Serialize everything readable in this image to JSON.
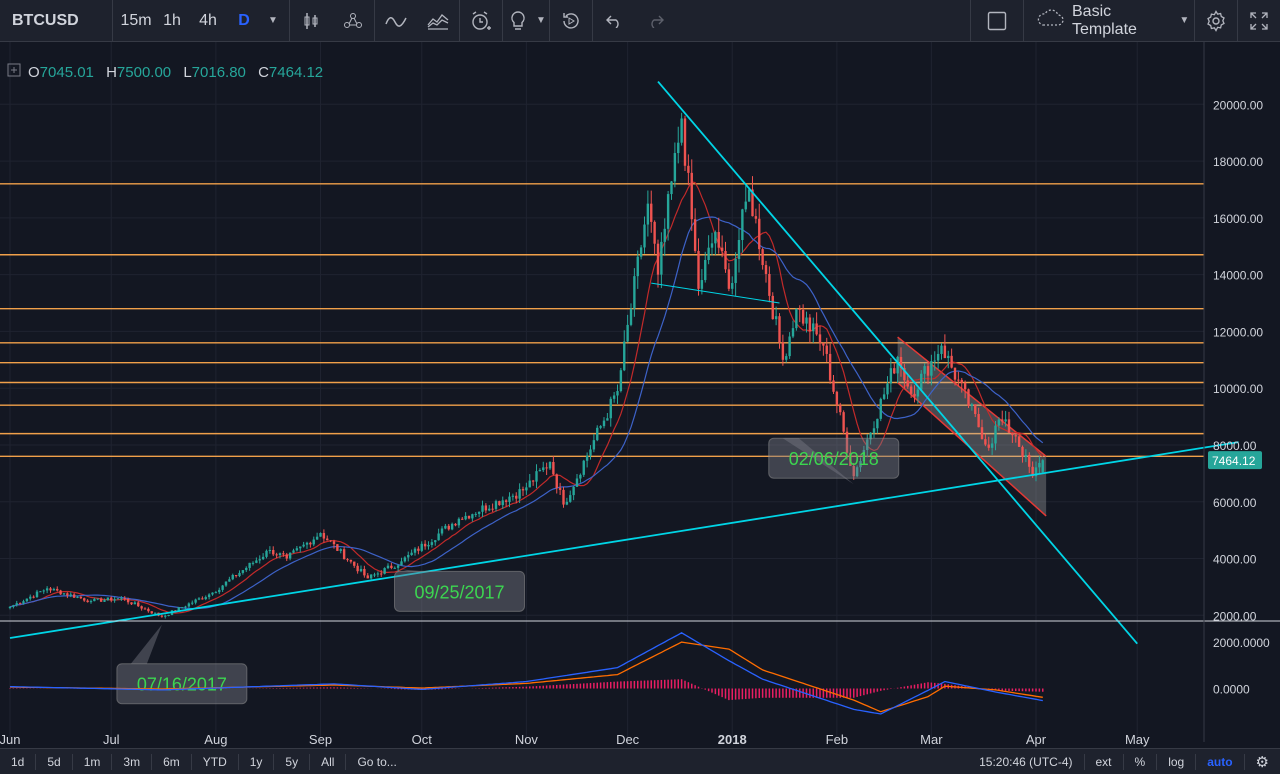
{
  "toolbar": {
    "symbol": "BTCUSD",
    "intervals": [
      "15m",
      "1h",
      "4h",
      "D"
    ],
    "active_interval": "D",
    "template_label": "Basic Template"
  },
  "legend": {
    "open_label": "O",
    "open": "7045.01",
    "high_label": "H",
    "high": "7500.00",
    "low_label": "L",
    "low": "7016.80",
    "close_label": "C",
    "close": "7464.12"
  },
  "bottombar": {
    "ranges": [
      "1d",
      "5d",
      "1m",
      "3m",
      "6m",
      "YTD",
      "1y",
      "5y",
      "All"
    ],
    "goto_label": "Go to...",
    "time": "15:20:46 (UTC-4)",
    "ext_label": "ext",
    "percent_label": "%",
    "log_label": "log",
    "auto_label": "auto"
  },
  "colors": {
    "background": "#131722",
    "up": "#26a69a",
    "down": "#ef5350",
    "trendline": "#00d5e6",
    "level": "#f0a04a",
    "ma_red": "#c22a2a",
    "ma_blue": "#3d62c8",
    "macd_line": "#2962ff",
    "signal_line": "#ff6d00",
    "histogram": "#e91e63",
    "callout_text": "#3cd650"
  },
  "chart_data": {
    "type": "candlestick",
    "symbol": "BTCUSD",
    "interval": "D",
    "x_tick_labels": [
      "Jun",
      "Jul",
      "Aug",
      "Sep",
      "Oct",
      "Nov",
      "Dec",
      "2018",
      "Feb",
      "Mar",
      "Apr",
      "May"
    ],
    "x_ticks": [
      "2017-06-01",
      "2017-07-01",
      "2017-08-01",
      "2017-09-01",
      "2017-10-01",
      "2017-11-01",
      "2017-12-01",
      "2018-01-01",
      "2018-02-01",
      "2018-03-01",
      "2018-04-01",
      "2018-05-01"
    ],
    "price_axis": {
      "tick_labels": [
        "2000.00",
        "4000.00",
        "6000.00",
        "8000.00",
        "10000.00",
        "12000.00",
        "14000.00",
        "16000.00",
        "18000.00",
        "20000.00"
      ],
      "ticks": [
        2000,
        4000,
        6000,
        8000,
        10000,
        12000,
        14000,
        16000,
        18000,
        20000
      ],
      "range": [
        1000,
        21000
      ]
    },
    "last_price_label": "7464.12",
    "last_price": 7464.12,
    "key_points": [
      {
        "date": "2017-06-01",
        "price": 2300
      },
      {
        "date": "2017-06-12",
        "price": 2950
      },
      {
        "date": "2017-06-25",
        "price": 2500
      },
      {
        "date": "2017-07-04",
        "price": 2600
      },
      {
        "date": "2017-07-16",
        "price": 1950
      },
      {
        "date": "2017-07-31",
        "price": 2800
      },
      {
        "date": "2017-08-17",
        "price": 4300
      },
      {
        "date": "2017-08-22",
        "price": 4000
      },
      {
        "date": "2017-09-01",
        "price": 4900
      },
      {
        "date": "2017-09-15",
        "price": 3300
      },
      {
        "date": "2017-09-25",
        "price": 3900
      },
      {
        "date": "2017-10-12",
        "price": 5400
      },
      {
        "date": "2017-10-31",
        "price": 6400
      },
      {
        "date": "2017-11-08",
        "price": 7400
      },
      {
        "date": "2017-11-12",
        "price": 5900
      },
      {
        "date": "2017-11-28",
        "price": 9900
      },
      {
        "date": "2017-12-07",
        "price": 16500
      },
      {
        "date": "2017-12-10",
        "price": 14000
      },
      {
        "date": "2017-12-17",
        "price": 19500
      },
      {
        "date": "2017-12-22",
        "price": 13500
      },
      {
        "date": "2017-12-27",
        "price": 15500
      },
      {
        "date": "2017-12-31",
        "price": 13500
      },
      {
        "date": "2018-01-06",
        "price": 17000
      },
      {
        "date": "2018-01-16",
        "price": 11000
      },
      {
        "date": "2018-01-20",
        "price": 12800
      },
      {
        "date": "2018-01-28",
        "price": 11500
      },
      {
        "date": "2018-02-06",
        "price": 6900
      },
      {
        "date": "2018-02-19",
        "price": 11100
      },
      {
        "date": "2018-02-23",
        "price": 9800
      },
      {
        "date": "2018-03-04",
        "price": 11500
      },
      {
        "date": "2018-03-18",
        "price": 7900
      },
      {
        "date": "2018-03-21",
        "price": 8900
      },
      {
        "date": "2018-03-26",
        "price": 8300
      },
      {
        "date": "2018-03-31",
        "price": 6900
      },
      {
        "date": "2018-04-03",
        "price": 7464
      }
    ],
    "horizontal_levels": [
      17200,
      14700,
      12800,
      11600,
      10900,
      10200,
      9400,
      8400,
      7600
    ],
    "trendlines": [
      {
        "from": {
          "date": "2017-06-01",
          "price": 1200
        },
        "to": {
          "date": "2018-05-31",
          "price": 8100
        }
      },
      {
        "from": {
          "date": "2017-12-10",
          "price": 20800
        },
        "to": {
          "date": "2018-05-01",
          "price": 1000
        }
      },
      {
        "from": {
          "date": "2017-12-08",
          "price": 13700
        },
        "to": {
          "date": "2018-01-15",
          "price": 13000
        }
      }
    ],
    "channel": {
      "upper": [
        {
          "date": "2018-02-19",
          "price": 11800
        },
        {
          "date": "2018-04-04",
          "price": 7600
        }
      ],
      "lower": [
        {
          "date": "2018-02-19",
          "price": 10200
        },
        {
          "date": "2018-04-04",
          "price": 5500
        }
      ]
    },
    "callouts": [
      {
        "label": "07/16/2017",
        "date": "2017-07-16"
      },
      {
        "label": "09/25/2017",
        "date": "2017-09-25"
      },
      {
        "label": "02/06/2018",
        "date": "2018-02-06"
      }
    ],
    "macd_axis": {
      "tick_labels": [
        "2000.0000",
        "0.0000"
      ],
      "ticks": [
        2000,
        0
      ],
      "range": [
        -1200,
        2800
      ]
    },
    "macd_key_points": [
      {
        "date": "2017-06-01",
        "macd": 80,
        "signal": 60
      },
      {
        "date": "2017-07-16",
        "macd": -60,
        "signal": -20
      },
      {
        "date": "2017-09-05",
        "macd": 200,
        "signal": 150
      },
      {
        "date": "2017-10-01",
        "macd": -40,
        "signal": 20
      },
      {
        "date": "2017-11-01",
        "macd": 300,
        "signal": 220
      },
      {
        "date": "2017-11-28",
        "macd": 900,
        "signal": 600
      },
      {
        "date": "2017-12-17",
        "macd": 2400,
        "signal": 2000
      },
      {
        "date": "2017-12-31",
        "macd": 1200,
        "signal": 1700
      },
      {
        "date": "2018-01-10",
        "macd": 400,
        "signal": 800
      },
      {
        "date": "2018-02-06",
        "macd": -900,
        "signal": -500
      },
      {
        "date": "2018-02-14",
        "macd": -1100,
        "signal": -1000
      },
      {
        "date": "2018-02-28",
        "macd": -80,
        "signal": -350
      },
      {
        "date": "2018-03-05",
        "macd": 300,
        "signal": 100
      },
      {
        "date": "2018-03-20",
        "macd": -150,
        "signal": -60
      },
      {
        "date": "2018-04-03",
        "macd": -520,
        "signal": -380
      }
    ]
  }
}
